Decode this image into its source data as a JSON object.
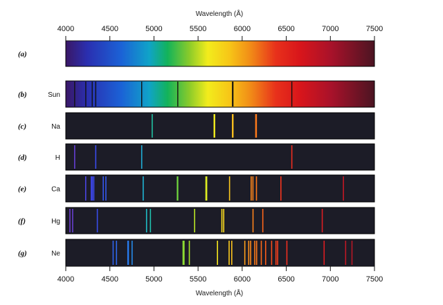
{
  "chart_data": {
    "type": "spectra",
    "title": "",
    "xlabel_top": "Wavelength (Å)",
    "xlabel_bottom": "Wavelength (Å)",
    "xlim": [
      4000,
      7500
    ],
    "tick_labels": [
      "4000",
      "4500",
      "5000",
      "5500",
      "6000",
      "6500",
      "7000",
      "7500"
    ],
    "tick_values": [
      4000,
      4500,
      5000,
      5500,
      6000,
      6500,
      7000,
      7500
    ],
    "colors": {
      "background": "#1c1c27",
      "frame": "#000000",
      "absorption_line": "#111111"
    },
    "rows": [
      {
        "letter": "(a)",
        "element": "",
        "kind": "continuous",
        "lines": []
      },
      {
        "letter": "(b)",
        "element": "Sun",
        "kind": "absorption",
        "lines": [
          4101,
          4227,
          4300,
          4340,
          4861,
          5270,
          5890,
          5896,
          6563
        ]
      },
      {
        "letter": "(c)",
        "element": "Na",
        "kind": "emission",
        "lines": [
          4980,
          5682,
          5688,
          5890,
          5896,
          6154,
          6161
        ]
      },
      {
        "letter": "(d)",
        "element": "H",
        "kind": "emission",
        "lines": [
          4101,
          4340,
          4861,
          6563
        ]
      },
      {
        "letter": "(e)",
        "element": "Ca",
        "kind": "emission",
        "lines": [
          4226,
          4289,
          4302,
          4318,
          4425,
          4455,
          4878,
          5265,
          5270,
          5589,
          5598,
          5857,
          6102,
          6122,
          6162,
          6439,
          7148
        ]
      },
      {
        "letter": "(f)",
        "element": "Hg",
        "kind": "emission",
        "lines": [
          4047,
          4078,
          4358,
          4916,
          4960,
          5461,
          5770,
          5791,
          6123,
          6234,
          6908
        ]
      },
      {
        "letter": "(g)",
        "element": "Ne",
        "kind": "emission",
        "lines": [
          4537,
          4575,
          4704,
          4710,
          4752,
          5330,
          5341,
          5401,
          5720,
          5852,
          5882,
          6030,
          6074,
          6096,
          6143,
          6164,
          6217,
          6266,
          6334,
          6383,
          6402,
          6507,
          6929,
          7173,
          7245
        ]
      }
    ]
  }
}
